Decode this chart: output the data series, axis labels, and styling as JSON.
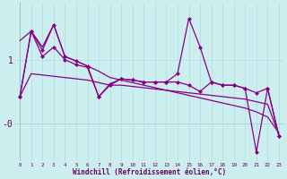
{
  "xlabel": "Windchill (Refroidissement éolien,°C)",
  "background_color": "#cceeee",
  "line_color": "#880088",
  "marker_color": "#880088",
  "ytick_labels": [
    "1",
    "-0"
  ],
  "ytick_positions": [
    1.0,
    0.0
  ],
  "ylim": [
    -0.6,
    1.9
  ],
  "xlim": [
    -0.5,
    23.5
  ],
  "series1_nomarker": [
    1.3,
    1.45,
    1.2,
    1.55,
    1.05,
    0.98,
    0.9,
    0.82,
    0.72,
    0.68,
    0.64,
    0.6,
    0.56,
    0.52,
    0.48,
    0.44,
    0.4,
    0.36,
    0.32,
    0.28,
    0.24,
    0.18,
    0.1,
    -0.15
  ],
  "series2_nomarker": [
    0.42,
    0.78,
    0.76,
    0.74,
    0.72,
    0.7,
    0.68,
    0.64,
    0.6,
    0.6,
    0.58,
    0.56,
    0.54,
    0.52,
    0.5,
    0.48,
    0.46,
    0.44,
    0.42,
    0.4,
    0.38,
    0.34,
    0.3,
    -0.18
  ],
  "series3_marker": [
    0.42,
    1.45,
    1.15,
    1.55,
    1.05,
    0.98,
    0.9,
    0.42,
    0.6,
    0.7,
    0.68,
    0.65,
    0.65,
    0.65,
    0.78,
    1.65,
    1.2,
    0.65,
    0.6,
    0.6,
    0.55,
    0.48,
    0.55,
    -0.2
  ],
  "series4_marker": [
    0.42,
    1.45,
    1.05,
    1.2,
    1.0,
    0.92,
    0.88,
    0.42,
    0.62,
    0.7,
    0.68,
    0.65,
    0.65,
    0.65,
    0.65,
    0.6,
    0.5,
    0.65,
    0.6,
    0.6,
    0.55,
    -0.45,
    0.55,
    -0.2
  ]
}
